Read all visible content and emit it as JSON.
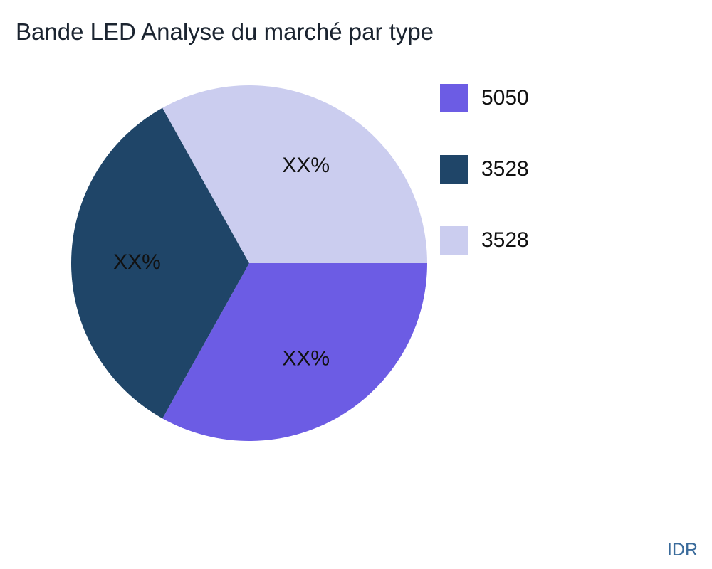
{
  "title": "Bande LED Analyse du marché par type",
  "footer": {
    "watermark": "IDR"
  },
  "colors": {
    "background": "#ffffff",
    "title_text": "#1b2430",
    "label_text": "#111111",
    "watermark_text": "#3a6b9b"
  },
  "chart_data": {
    "type": "pie",
    "title": "Bande LED Analyse du marché par type",
    "legend_position": "top-right",
    "start_angle_deg": 0,
    "direction": "clockwise",
    "slices": [
      {
        "name": "5050",
        "value": 33.1,
        "label": "XX%",
        "color": "#6c5ce4"
      },
      {
        "name": "3528",
        "value": 33.8,
        "label": "XX%",
        "color": "#1f4568"
      },
      {
        "name": "3528",
        "value": 33.1,
        "label": "XX%",
        "color": "#cbcdef"
      }
    ]
  }
}
